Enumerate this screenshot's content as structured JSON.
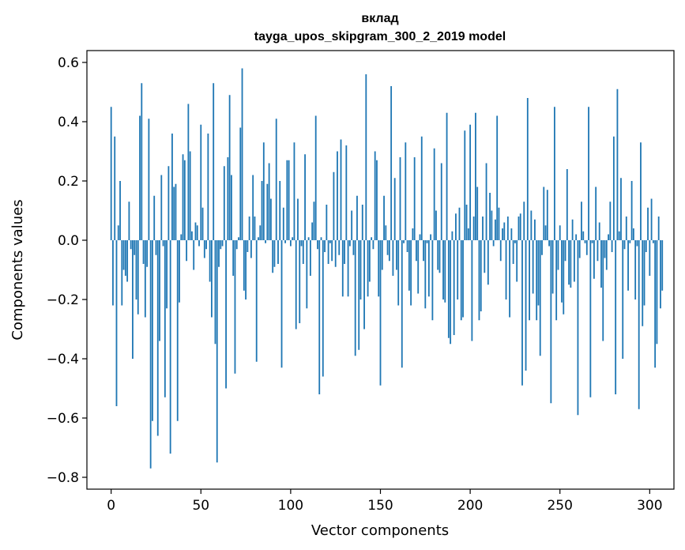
{
  "chart_data": {
    "type": "bar",
    "title": "вклад",
    "subtitle": "tayga_upos_skipgram_300_2_2019 model",
    "xlabel": "Vector components",
    "ylabel": "Components values",
    "xlim": [
      -13.5,
      313.5
    ],
    "ylim": [
      -0.84,
      0.64
    ],
    "xticks": [
      0,
      50,
      100,
      150,
      200,
      250,
      300
    ],
    "xtick_labels": [
      "0",
      "50",
      "100",
      "150",
      "200",
      "250",
      "300"
    ],
    "yticks": [
      -0.8,
      -0.6,
      -0.4,
      -0.2,
      0.0,
      0.2,
      0.4,
      0.6
    ],
    "ytick_labels": [
      "−0.8",
      "−0.6",
      "−0.4",
      "−0.2",
      "0.0",
      "0.2",
      "0.4",
      "0.6"
    ],
    "bar_color": "#1f77b4",
    "bar_width": 0.8,
    "values": [
      0.45,
      -0.22,
      0.35,
      -0.56,
      0.05,
      0.2,
      -0.22,
      -0.1,
      -0.12,
      -0.14,
      0.13,
      -0.03,
      -0.4,
      -0.05,
      -0.2,
      -0.25,
      0.42,
      0.53,
      -0.08,
      -0.26,
      -0.09,
      0.41,
      -0.77,
      -0.61,
      0.15,
      -0.05,
      -0.66,
      -0.34,
      0.22,
      -0.02,
      -0.53,
      -0.23,
      0.25,
      -0.72,
      0.36,
      0.18,
      0.19,
      -0.61,
      -0.21,
      0.02,
      0.29,
      0.27,
      -0.07,
      0.46,
      0.3,
      0.03,
      -0.1,
      0.06,
      0.05,
      -0.02,
      0.39,
      0.11,
      -0.06,
      -0.03,
      0.36,
      -0.14,
      -0.26,
      0.53,
      -0.35,
      -0.75,
      -0.09,
      -0.03,
      -0.02,
      0.25,
      -0.5,
      0.28,
      0.49,
      0.22,
      -0.12,
      -0.45,
      -0.03,
      0.01,
      0.38,
      0.58,
      -0.17,
      -0.2,
      -0.04,
      0.08,
      -0.06,
      0.22,
      0.08,
      -0.41,
      0.01,
      0.05,
      0.2,
      0.33,
      -0.01,
      0.19,
      0.26,
      0.14,
      -0.11,
      -0.09,
      0.41,
      -0.08,
      0.2,
      -0.43,
      0.11,
      -0.01,
      0.27,
      0.27,
      -0.02,
      0.01,
      0.33,
      -0.3,
      0.14,
      -0.28,
      -0.02,
      -0.08,
      0.29,
      -0.23,
      0.01,
      -0.12,
      0.06,
      0.13,
      0.42,
      -0.03,
      -0.52,
      0.01,
      -0.46,
      -0.04,
      0.12,
      -0.08,
      -0.01,
      -0.07,
      0.23,
      -0.09,
      0.3,
      -0.05,
      0.34,
      -0.19,
      -0.08,
      0.32,
      -0.19,
      -0.02,
      0.1,
      -0.05,
      -0.39,
      0.15,
      -0.37,
      -0.2,
      0.12,
      -0.3,
      0.56,
      -0.19,
      -0.14,
      0.01,
      -0.03,
      0.3,
      0.27,
      -0.19,
      -0.49,
      -0.1,
      0.15,
      0.05,
      -0.05,
      -0.07,
      0.52,
      -0.12,
      0.21,
      -0.1,
      -0.22,
      0.28,
      -0.43,
      -0.01,
      0.33,
      -0.04,
      -0.17,
      -0.22,
      0.04,
      0.28,
      -0.07,
      -0.18,
      0.02,
      0.35,
      -0.07,
      -0.23,
      -0.01,
      -0.19,
      0.02,
      -0.27,
      0.31,
      0.1,
      -0.1,
      -0.11,
      0.26,
      -0.2,
      -0.21,
      0.43,
      -0.33,
      -0.35,
      0.03,
      -0.32,
      0.09,
      -0.2,
      0.11,
      -0.27,
      -0.26,
      0.37,
      0.12,
      0.04,
      0.39,
      -0.34,
      0.08,
      0.43,
      0.18,
      -0.27,
      -0.24,
      0.08,
      -0.11,
      0.26,
      -0.15,
      0.16,
      0.1,
      -0.02,
      0.07,
      0.42,
      0.11,
      -0.07,
      0.04,
      0.06,
      -0.2,
      0.08,
      -0.26,
      0.04,
      -0.08,
      -0.01,
      -0.14,
      0.08,
      0.09,
      -0.49,
      0.13,
      -0.44,
      0.48,
      -0.27,
      0.1,
      -0.18,
      0.07,
      -0.27,
      -0.22,
      -0.39,
      -0.05,
      0.18,
      0.05,
      0.17,
      -0.02,
      -0.55,
      -0.18,
      0.45,
      -0.27,
      -0.1,
      0.05,
      -0.21,
      -0.25,
      -0.07,
      0.24,
      -0.15,
      -0.16,
      0.07,
      -0.14,
      0.02,
      -0.59,
      -0.06,
      0.13,
      0.03,
      -0.01,
      -0.05,
      0.45,
      -0.53,
      -0.01,
      -0.13,
      0.18,
      -0.07,
      0.06,
      -0.16,
      -0.34,
      -0.06,
      -0.1,
      0.02,
      0.13,
      -0.04,
      0.35,
      -0.52,
      0.51,
      0.03,
      0.21,
      -0.4,
      -0.03,
      0.08,
      -0.17,
      -0.01,
      0.2,
      0.04,
      -0.2,
      -0.02,
      -0.57,
      0.33,
      -0.29,
      -0.22,
      -0.04,
      0.11,
      -0.12,
      0.14,
      -0.01,
      -0.43,
      -0.35,
      0.08,
      -0.23,
      -0.17
    ]
  }
}
